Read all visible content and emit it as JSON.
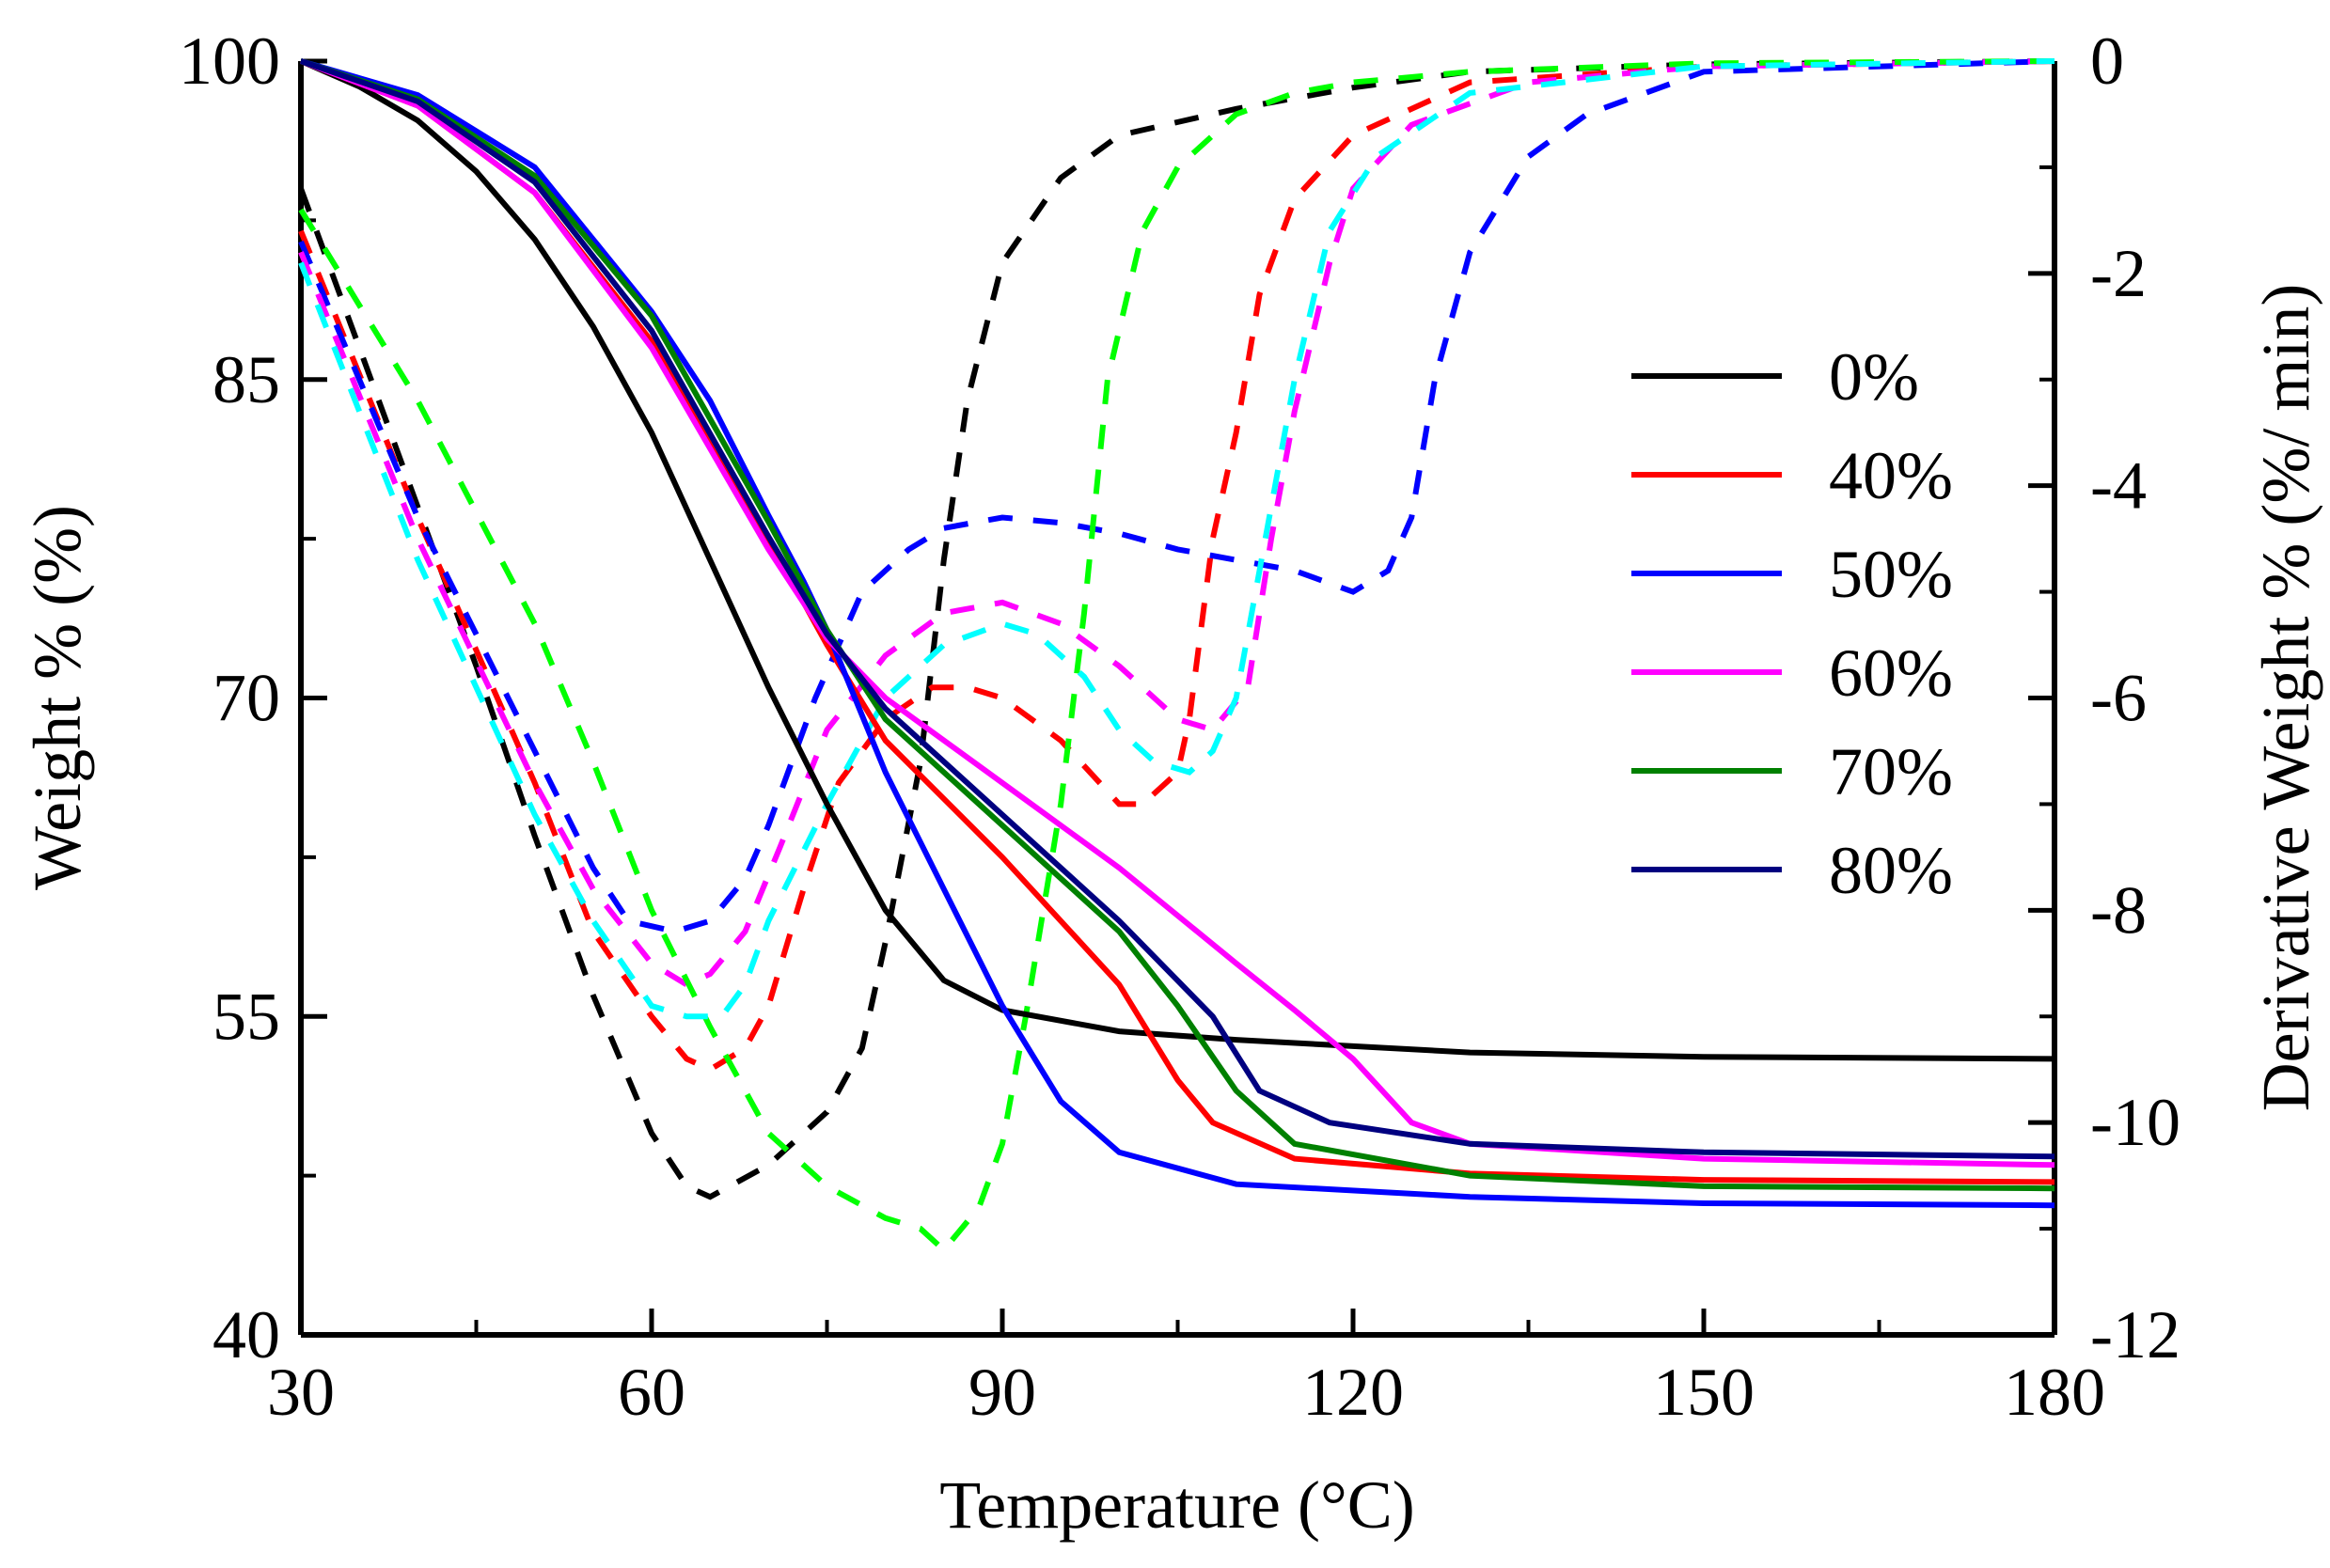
{
  "chart_data": {
    "type": "line",
    "x_axis": {
      "label": "Temperature (°C)",
      "range": [
        30,
        180
      ],
      "ticks": [
        "30",
        "60",
        "90",
        "120",
        "150",
        "180"
      ]
    },
    "y_axis_left": {
      "label": "Weight % (%)",
      "range": [
        40,
        100
      ],
      "ticks": [
        "40",
        "55",
        "70",
        "85",
        "100"
      ]
    },
    "y_axis_right": {
      "label": "Derivative Weight % (%/ min)",
      "range": [
        -12,
        0
      ],
      "ticks": [
        "-12",
        "-10",
        "-8",
        "-6",
        "-4",
        "-2",
        "0"
      ]
    },
    "legend_position": "right-middle",
    "series": [
      {
        "name": "0%",
        "color": "#000000",
        "weight": [
          [
            30,
            100
          ],
          [
            35,
            98.8
          ],
          [
            40,
            97.2
          ],
          [
            45,
            94.8
          ],
          [
            50,
            91.6
          ],
          [
            55,
            87.5
          ],
          [
            60,
            82.5
          ],
          [
            65,
            76.5
          ],
          [
            70,
            70.5
          ],
          [
            75,
            65
          ],
          [
            80,
            60
          ],
          [
            85,
            56.7
          ],
          [
            90,
            55.3
          ],
          [
            100,
            54.3
          ],
          [
            110,
            53.9
          ],
          [
            120,
            53.6
          ],
          [
            130,
            53.3
          ],
          [
            150,
            53.1
          ],
          [
            180,
            53
          ]
        ],
        "derivative": [
          [
            30,
            -1.2
          ],
          [
            35,
            -2.7
          ],
          [
            40,
            -4.2
          ],
          [
            45,
            -5.7
          ],
          [
            50,
            -7.3
          ],
          [
            55,
            -8.8
          ],
          [
            60,
            -10.1
          ],
          [
            63,
            -10.6
          ],
          [
            65,
            -10.7
          ],
          [
            70,
            -10.4
          ],
          [
            75,
            -9.9
          ],
          [
            78,
            -9.3
          ],
          [
            80,
            -8.3
          ],
          [
            83,
            -6.6
          ],
          [
            85,
            -4.7
          ],
          [
            87,
            -3.2
          ],
          [
            90,
            -1.9
          ],
          [
            95,
            -1.1
          ],
          [
            100,
            -0.7
          ],
          [
            110,
            -0.45
          ],
          [
            120,
            -0.25
          ],
          [
            130,
            -0.1
          ],
          [
            150,
            -0.03
          ],
          [
            180,
            0
          ]
        ]
      },
      {
        "name": "40%",
        "color": "#ff0000",
        "weight": [
          [
            30,
            100
          ],
          [
            40,
            97.9
          ],
          [
            50,
            93.8
          ],
          [
            60,
            86.8
          ],
          [
            70,
            77.5
          ],
          [
            75,
            72.5
          ],
          [
            80,
            68
          ],
          [
            90,
            62.5
          ],
          [
            100,
            56.5
          ],
          [
            105,
            52
          ],
          [
            108,
            50
          ],
          [
            115,
            48.3
          ],
          [
            130,
            47.6
          ],
          [
            150,
            47.3
          ],
          [
            180,
            47.2
          ]
        ],
        "derivative": [
          [
            30,
            -1.6
          ],
          [
            40,
            -4.3
          ],
          [
            50,
            -6.8
          ],
          [
            55,
            -8.2
          ],
          [
            60,
            -9.0
          ],
          [
            63,
            -9.4
          ],
          [
            65,
            -9.5
          ],
          [
            68,
            -9.3
          ],
          [
            70,
            -8.9
          ],
          [
            73,
            -7.8
          ],
          [
            76,
            -6.8
          ],
          [
            80,
            -6.2
          ],
          [
            84,
            -5.9
          ],
          [
            87,
            -5.9
          ],
          [
            90,
            -6.0
          ],
          [
            95,
            -6.4
          ],
          [
            100,
            -7.0
          ],
          [
            102,
            -7.0
          ],
          [
            105,
            -6.7
          ],
          [
            106,
            -6.2
          ],
          [
            108,
            -4.5
          ],
          [
            110,
            -3.5
          ],
          [
            112,
            -2.2
          ],
          [
            115,
            -1.3
          ],
          [
            120,
            -0.7
          ],
          [
            130,
            -0.2
          ],
          [
            150,
            -0.05
          ],
          [
            180,
            0
          ]
        ]
      },
      {
        "name": "50%",
        "color": "#0000ff",
        "weight": [
          [
            30,
            100
          ],
          [
            40,
            98.4
          ],
          [
            50,
            95
          ],
          [
            60,
            88.2
          ],
          [
            65,
            84
          ],
          [
            70,
            78.6
          ],
          [
            73,
            75.5
          ],
          [
            75,
            73.2
          ],
          [
            80,
            66.5
          ],
          [
            85,
            61
          ],
          [
            90,
            55.5
          ],
          [
            95,
            51
          ],
          [
            100,
            48.6
          ],
          [
            110,
            47.1
          ],
          [
            130,
            46.5
          ],
          [
            150,
            46.2
          ],
          [
            180,
            46.1
          ]
        ],
        "derivative": [
          [
            30,
            -1.7
          ],
          [
            40,
            -4.3
          ],
          [
            50,
            -6.5
          ],
          [
            55,
            -7.6
          ],
          [
            58,
            -8.1
          ],
          [
            62,
            -8.2
          ],
          [
            65,
            -8.1
          ],
          [
            68,
            -7.7
          ],
          [
            70,
            -7.2
          ],
          [
            74,
            -6.0
          ],
          [
            78,
            -5.0
          ],
          [
            82,
            -4.6
          ],
          [
            85,
            -4.4
          ],
          [
            90,
            -4.3
          ],
          [
            95,
            -4.35
          ],
          [
            100,
            -4.45
          ],
          [
            105,
            -4.6
          ],
          [
            110,
            -4.7
          ],
          [
            115,
            -4.8
          ],
          [
            120,
            -5.0
          ],
          [
            123,
            -4.8
          ],
          [
            125,
            -4.3
          ],
          [
            127,
            -3.0
          ],
          [
            130,
            -1.8
          ],
          [
            135,
            -0.9
          ],
          [
            140,
            -0.5
          ],
          [
            150,
            -0.1
          ],
          [
            180,
            0
          ]
        ]
      },
      {
        "name": "60%",
        "color": "#ff00ff",
        "weight": [
          [
            30,
            100
          ],
          [
            40,
            97.9
          ],
          [
            50,
            93.8
          ],
          [
            60,
            86.5
          ],
          [
            70,
            77
          ],
          [
            75,
            72.8
          ],
          [
            80,
            70
          ],
          [
            90,
            66
          ],
          [
            100,
            62
          ],
          [
            110,
            57.5
          ],
          [
            115,
            55.3
          ],
          [
            120,
            53
          ],
          [
            125,
            50
          ],
          [
            130,
            49
          ],
          [
            150,
            48.3
          ],
          [
            180,
            48
          ]
        ],
        "derivative": [
          [
            30,
            -1.8
          ],
          [
            40,
            -4.5
          ],
          [
            50,
            -6.8
          ],
          [
            55,
            -7.8
          ],
          [
            60,
            -8.5
          ],
          [
            63,
            -8.7
          ],
          [
            65,
            -8.6
          ],
          [
            68,
            -8.2
          ],
          [
            71,
            -7.4
          ],
          [
            75,
            -6.3
          ],
          [
            80,
            -5.6
          ],
          [
            85,
            -5.2
          ],
          [
            90,
            -5.1
          ],
          [
            95,
            -5.3
          ],
          [
            100,
            -5.7
          ],
          [
            105,
            -6.2
          ],
          [
            108,
            -6.3
          ],
          [
            111,
            -5.9
          ],
          [
            113,
            -4.5
          ],
          [
            115,
            -3.3
          ],
          [
            118,
            -1.9
          ],
          [
            120,
            -1.2
          ],
          [
            125,
            -0.6
          ],
          [
            135,
            -0.2
          ],
          [
            150,
            -0.05
          ],
          [
            180,
            0
          ]
        ]
      },
      {
        "name": "70%",
        "color": "#008000",
        "weight": [
          [
            30,
            100
          ],
          [
            40,
            98.2
          ],
          [
            50,
            94.6
          ],
          [
            60,
            88
          ],
          [
            70,
            78.3
          ],
          [
            75,
            73.2
          ],
          [
            80,
            69
          ],
          [
            90,
            64
          ],
          [
            100,
            59
          ],
          [
            105,
            55.5
          ],
          [
            110,
            51.5
          ],
          [
            115,
            49
          ],
          [
            130,
            47.5
          ],
          [
            150,
            47
          ],
          [
            180,
            46.9
          ]
        ],
        "derivative": null
      },
      {
        "name": "80%",
        "color": "#000080",
        "weight": [
          [
            30,
            100
          ],
          [
            40,
            98.1
          ],
          [
            50,
            94.3
          ],
          [
            60,
            87.3
          ],
          [
            70,
            77.6
          ],
          [
            75,
            73
          ],
          [
            80,
            69.5
          ],
          [
            90,
            64.5
          ],
          [
            100,
            59.5
          ],
          [
            108,
            55
          ],
          [
            112,
            51.5
          ],
          [
            118,
            50
          ],
          [
            130,
            49
          ],
          [
            150,
            48.6
          ],
          [
            180,
            48.4
          ]
        ],
        "derivative": null
      }
    ],
    "extra_derivative_series": [
      {
        "color": "#00ff00",
        "values": [
          [
            30,
            -1.4
          ],
          [
            40,
            -3.2
          ],
          [
            50,
            -5.3
          ],
          [
            55,
            -6.6
          ],
          [
            60,
            -8.0
          ],
          [
            65,
            -9.1
          ],
          [
            70,
            -10.1
          ],
          [
            75,
            -10.6
          ],
          [
            80,
            -10.9
          ],
          [
            83,
            -11.0
          ],
          [
            85,
            -11.2
          ],
          [
            88,
            -10.8
          ],
          [
            90,
            -10.2
          ],
          [
            92,
            -9.0
          ],
          [
            95,
            -7.0
          ],
          [
            97,
            -5.2
          ],
          [
            99,
            -3.0
          ],
          [
            102,
            -1.6
          ],
          [
            105,
            -1.0
          ],
          [
            110,
            -0.5
          ],
          [
            115,
            -0.3
          ],
          [
            120,
            -0.2
          ],
          [
            130,
            -0.1
          ],
          [
            150,
            -0.02
          ],
          [
            180,
            0
          ]
        ]
      },
      {
        "color": "#00ffff",
        "values": [
          [
            30,
            -1.9
          ],
          [
            40,
            -4.7
          ],
          [
            50,
            -7.1
          ],
          [
            55,
            -8.1
          ],
          [
            60,
            -8.9
          ],
          [
            63,
            -9.0
          ],
          [
            66,
            -9.0
          ],
          [
            68,
            -8.7
          ],
          [
            70,
            -8.1
          ],
          [
            75,
            -7.0
          ],
          [
            80,
            -6.0
          ],
          [
            85,
            -5.5
          ],
          [
            90,
            -5.3
          ],
          [
            93,
            -5.4
          ],
          [
            97,
            -5.8
          ],
          [
            100,
            -6.3
          ],
          [
            103,
            -6.6
          ],
          [
            106,
            -6.7
          ],
          [
            108,
            -6.5
          ],
          [
            110,
            -6.0
          ],
          [
            112,
            -4.8
          ],
          [
            115,
            -3.0
          ],
          [
            118,
            -1.6
          ],
          [
            122,
            -0.9
          ],
          [
            130,
            -0.3
          ],
          [
            150,
            -0.05
          ],
          [
            180,
            0
          ]
        ]
      }
    ]
  }
}
